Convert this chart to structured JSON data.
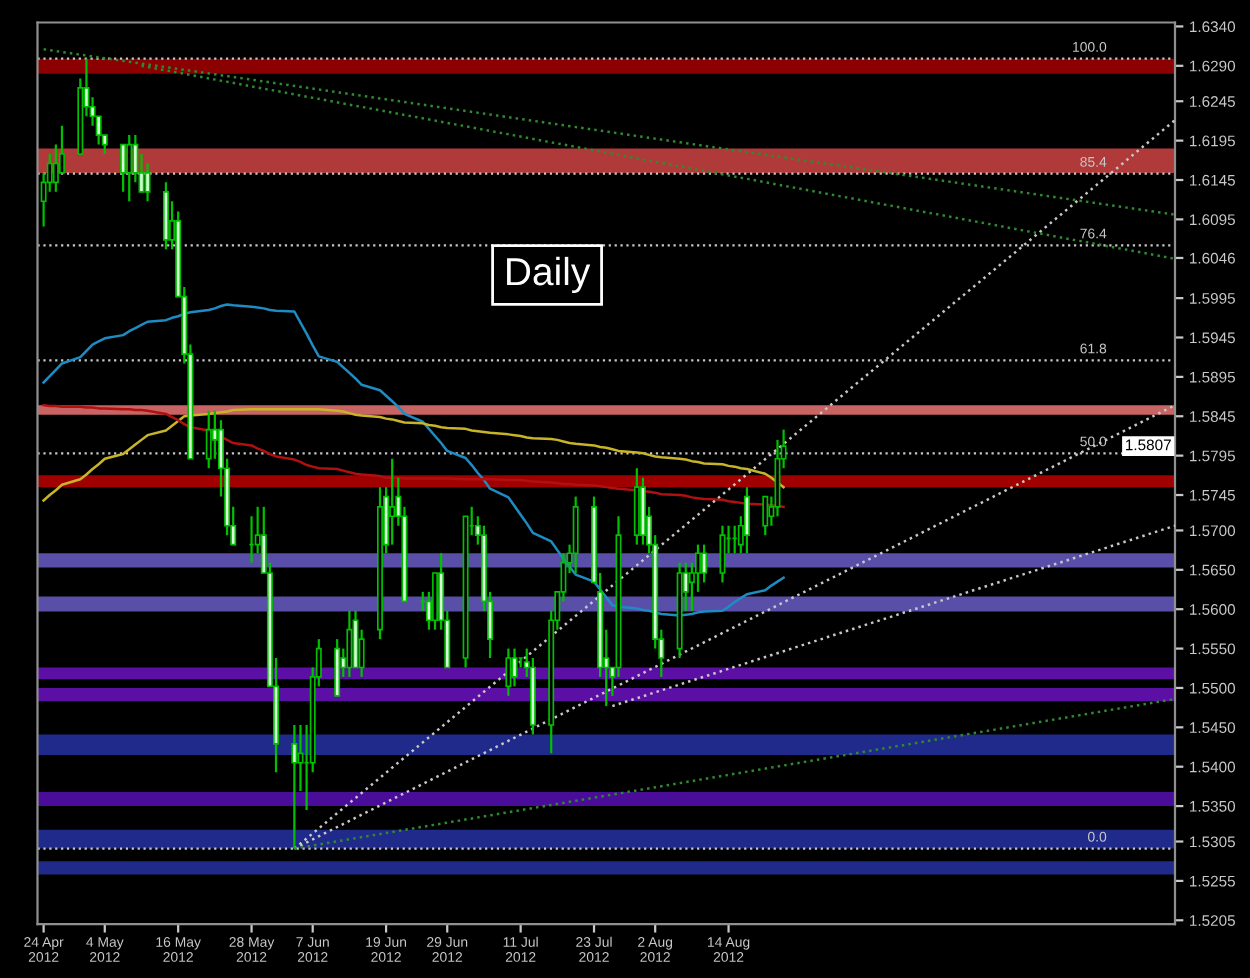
{
  "chart_data": {
    "type": "candlestick",
    "color": "#00c000",
    "x": [
      "2012-04-24",
      "2012-04-25",
      "2012-04-26",
      "2012-04-27",
      "2012-04-30",
      "2012-05-01",
      "2012-05-02",
      "2012-05-03",
      "2012-05-04",
      "2012-05-07",
      "2012-05-08",
      "2012-05-09",
      "2012-05-10",
      "2012-05-11",
      "2012-05-14",
      "2012-05-15",
      "2012-05-16",
      "2012-05-17",
      "2012-05-18",
      "2012-05-21",
      "2012-05-22",
      "2012-05-23",
      "2012-05-24",
      "2012-05-25",
      "2012-05-28",
      "2012-05-29",
      "2012-05-30",
      "2012-05-31",
      "2012-06-01",
      "2012-06-04",
      "2012-06-05",
      "2012-06-06",
      "2012-06-07",
      "2012-06-08",
      "2012-06-11",
      "2012-06-12",
      "2012-06-13",
      "2012-06-14",
      "2012-06-15",
      "2012-06-18",
      "2012-06-19",
      "2012-06-20",
      "2012-06-21",
      "2012-06-22",
      "2012-06-25",
      "2012-06-26",
      "2012-06-27",
      "2012-06-28",
      "2012-06-29",
      "2012-07-02",
      "2012-07-03",
      "2012-07-04",
      "2012-07-05",
      "2012-07-06",
      "2012-07-09",
      "2012-07-10",
      "2012-07-11",
      "2012-07-12",
      "2012-07-13",
      "2012-07-16",
      "2012-07-17",
      "2012-07-18",
      "2012-07-19",
      "2012-07-20",
      "2012-07-23",
      "2012-07-24",
      "2012-07-25",
      "2012-07-26",
      "2012-07-27",
      "2012-07-30",
      "2012-07-31",
      "2012-08-01",
      "2012-08-02",
      "2012-08-03",
      "2012-08-06",
      "2012-08-07",
      "2012-08-08",
      "2012-08-09",
      "2012-08-10",
      "2012-08-13",
      "2012-08-14",
      "2012-08-15",
      "2012-08-16",
      "2012-08-17",
      "2012-08-20",
      "2012-08-21",
      "2012-08-22",
      "2012-08-23"
    ],
    "ohlc": [
      [
        1.6118,
        1.6154,
        1.6086,
        1.6142
      ],
      [
        1.6142,
        1.6178,
        1.613,
        1.6166
      ],
      [
        1.6142,
        1.619,
        1.613,
        1.6166
      ],
      [
        1.6154,
        1.6214,
        1.6154,
        1.6178
      ],
      [
        1.6178,
        1.6274,
        1.6178,
        1.6262
      ],
      [
        1.6262,
        1.6299,
        1.6226,
        1.6238
      ],
      [
        1.6238,
        1.625,
        1.6214,
        1.6226
      ],
      [
        1.6226,
        1.6226,
        1.619,
        1.6202
      ],
      [
        1.6202,
        1.6202,
        1.6178,
        1.619
      ],
      [
        1.619,
        1.619,
        1.613,
        1.6154
      ],
      [
        1.6154,
        1.6202,
        1.6118,
        1.619
      ],
      [
        1.619,
        1.6202,
        1.6142,
        1.6154
      ],
      [
        1.6154,
        1.6178,
        1.613,
        1.613
      ],
      [
        1.6154,
        1.6166,
        1.6118,
        1.613
      ],
      [
        1.613,
        1.6142,
        1.6057,
        1.6069
      ],
      [
        1.6069,
        1.6118,
        1.6057,
        1.6093
      ],
      [
        1.6093,
        1.6105,
        1.5997,
        1.5997
      ],
      [
        1.5997,
        1.6009,
        1.5912,
        1.5924
      ],
      [
        1.5924,
        1.5936,
        1.5791,
        1.5791
      ],
      [
        1.5791,
        1.5852,
        1.5779,
        1.5828
      ],
      [
        1.5828,
        1.5852,
        1.5791,
        1.5815
      ],
      [
        1.5828,
        1.584,
        1.5743,
        1.5779
      ],
      [
        1.5779,
        1.5791,
        1.5694,
        1.5706
      ],
      [
        1.5706,
        1.573,
        1.5682,
        1.5682
      ],
      [
        1.5682,
        1.5718,
        1.5659,
        1.5682
      ],
      [
        1.5682,
        1.573,
        1.5671,
        1.5694
      ],
      [
        1.5694,
        1.573,
        1.5646,
        1.5646
      ],
      [
        1.5646,
        1.5659,
        1.5502,
        1.5502
      ],
      [
        1.5502,
        1.5538,
        1.5393,
        1.5429
      ],
      [
        1.5429,
        1.5453,
        1.5296,
        1.5405
      ],
      [
        1.5405,
        1.5453,
        1.5369,
        1.5417
      ],
      [
        1.5405,
        1.5453,
        1.5345,
        1.5405
      ],
      [
        1.5405,
        1.5526,
        1.5393,
        1.5514
      ],
      [
        1.5514,
        1.5562,
        1.5502,
        1.555
      ],
      [
        1.555,
        1.5562,
        1.549,
        1.549
      ],
      [
        1.5538,
        1.555,
        1.5514,
        1.5526
      ],
      [
        1.5526,
        1.5598,
        1.5514,
        1.5574
      ],
      [
        1.5586,
        1.5598,
        1.5526,
        1.5526
      ],
      [
        1.5526,
        1.5574,
        1.5514,
        1.5562
      ],
      [
        1.5574,
        1.5755,
        1.5562,
        1.573
      ],
      [
        1.5743,
        1.5755,
        1.5671,
        1.5682
      ],
      [
        1.5718,
        1.5791,
        1.5682,
        1.573
      ],
      [
        1.5743,
        1.5767,
        1.5706,
        1.5718
      ],
      [
        1.5718,
        1.573,
        1.561,
        1.561
      ],
      [
        1.561,
        1.5622,
        1.5598,
        1.561
      ],
      [
        1.561,
        1.5622,
        1.5574,
        1.5586
      ],
      [
        1.5586,
        1.5646,
        1.5574,
        1.5646
      ],
      [
        1.5646,
        1.5671,
        1.5574,
        1.5586
      ],
      [
        1.5586,
        1.5598,
        1.5526,
        1.5526
      ],
      [
        1.5538,
        1.5718,
        1.5526,
        1.5718
      ],
      [
        1.5706,
        1.573,
        1.5694,
        1.5706
      ],
      [
        1.5706,
        1.5718,
        1.5682,
        1.5694
      ],
      [
        1.5694,
        1.5706,
        1.5598,
        1.561
      ],
      [
        1.561,
        1.5622,
        1.5538,
        1.5562
      ],
      [
        1.5502,
        1.555,
        1.549,
        1.5538
      ],
      [
        1.5538,
        1.555,
        1.5502,
        1.5514
      ],
      [
        1.5538,
        1.5538,
        1.5526,
        1.5538
      ],
      [
        1.5533,
        1.555,
        1.5514,
        1.5526
      ],
      [
        1.5526,
        1.5538,
        1.5441,
        1.5453
      ],
      [
        1.5453,
        1.5598,
        1.5417,
        1.5586
      ],
      [
        1.5586,
        1.5622,
        1.5574,
        1.5622
      ],
      [
        1.5622,
        1.5671,
        1.561,
        1.5659
      ],
      [
        1.5659,
        1.5682,
        1.5646,
        1.5671
      ],
      [
        1.5671,
        1.5743,
        1.5646,
        1.573
      ],
      [
        1.573,
        1.5743,
        1.5634,
        1.5634
      ],
      [
        1.5622,
        1.5646,
        1.5514,
        1.5526
      ],
      [
        1.5538,
        1.5574,
        1.5477,
        1.5526
      ],
      [
        1.5526,
        1.5526,
        1.549,
        1.5514
      ],
      [
        1.5526,
        1.5718,
        1.5514,
        1.5694
      ],
      [
        1.5694,
        1.5779,
        1.5682,
        1.5755
      ],
      [
        1.5755,
        1.5767,
        1.5682,
        1.5694
      ],
      [
        1.5718,
        1.573,
        1.5671,
        1.5682
      ],
      [
        1.5682,
        1.5694,
        1.555,
        1.5562
      ],
      [
        1.5562,
        1.5574,
        1.5514,
        1.5538
      ],
      [
        1.555,
        1.5659,
        1.5538,
        1.5646
      ],
      [
        1.5646,
        1.5659,
        1.5598,
        1.5622
      ],
      [
        1.5634,
        1.5659,
        1.5598,
        1.5646
      ],
      [
        1.5646,
        1.5682,
        1.5622,
        1.5671
      ],
      [
        1.5671,
        1.5682,
        1.5634,
        1.5646
      ],
      [
        1.5646,
        1.5706,
        1.5634,
        1.5694
      ],
      [
        1.569,
        1.5706,
        1.5671,
        1.569
      ],
      [
        1.569,
        1.5706,
        1.5671,
        1.569
      ],
      [
        1.5682,
        1.5718,
        1.5671,
        1.5706
      ],
      [
        1.5743,
        1.5755,
        1.5671,
        1.5694
      ],
      [
        1.5706,
        1.5743,
        1.5694,
        1.5743
      ],
      [
        1.5718,
        1.5743,
        1.5706,
        1.573
      ],
      [
        1.573,
        1.5815,
        1.5718,
        1.5791
      ],
      [
        1.5791,
        1.5828,
        1.5779,
        1.5807
      ]
    ],
    "series": [
      {
        "type": "line",
        "color": "#1e8bc3",
        "values": [
          1.5888,
          1.5896,
          1.5904,
          1.5912,
          1.592,
          1.5928,
          1.5936,
          1.594,
          1.5944,
          1.5948,
          1.5953,
          1.5957,
          1.5961,
          1.5965,
          1.5967,
          1.597,
          1.5972,
          1.5975,
          1.5977,
          1.598,
          1.5982,
          1.5985,
          1.5987,
          1.5986,
          1.5984,
          1.5983,
          1.5982,
          1.598,
          1.5979,
          1.5978,
          1.5964,
          1.595,
          1.5935,
          1.5921,
          1.5914,
          1.5907,
          1.59,
          1.5893,
          1.5885,
          1.5878,
          1.5871,
          1.5864,
          1.5857,
          1.5848,
          1.5838,
          1.5829,
          1.582,
          1.5811,
          1.5801,
          1.5792,
          1.5783,
          1.5773,
          1.5764,
          1.5753,
          1.5742,
          1.5731,
          1.572,
          1.5709,
          1.5697,
          1.5686,
          1.5675,
          1.5664,
          1.5654,
          1.5644,
          1.5635,
          1.5625,
          1.5615,
          1.5605,
          1.5603,
          1.5601,
          1.5599,
          1.5598,
          1.5596,
          1.5594,
          1.5592,
          1.5593,
          1.5594,
          1.5596,
          1.5597,
          1.5598,
          1.5603,
          1.5609,
          1.5614,
          1.5619,
          1.5624,
          1.563,
          1.5635,
          1.564
        ]
      },
      {
        "type": "line",
        "color": "#c8b428",
        "values": [
          1.5738,
          1.5745,
          1.5751,
          1.5758,
          1.5765,
          1.5771,
          1.5778,
          1.5784,
          1.5791,
          1.5797,
          1.5803,
          1.5809,
          1.5815,
          1.5821,
          1.5827,
          1.5833,
          1.5839,
          1.5845,
          1.5846,
          1.5848,
          1.5849,
          1.585,
          1.5851,
          1.5853,
          1.5854,
          1.5854,
          1.5854,
          1.5854,
          1.5854,
          1.5854,
          1.5854,
          1.5854,
          1.5854,
          1.5854,
          1.5852,
          1.5851,
          1.5849,
          1.5847,
          1.5846,
          1.5844,
          1.5842,
          1.5841,
          1.5839,
          1.5837,
          1.5836,
          1.5834,
          1.5833,
          1.5831,
          1.583,
          1.5829,
          1.5827,
          1.5826,
          1.5825,
          1.5824,
          1.5822,
          1.5821,
          1.582,
          1.5818,
          1.5817,
          1.5816,
          1.5815,
          1.5813,
          1.5811,
          1.581,
          1.5808,
          1.5806,
          1.5805,
          1.5803,
          1.5801,
          1.5799,
          1.5798,
          1.5796,
          1.5794,
          1.5793,
          1.5791,
          1.579,
          1.5788,
          1.5787,
          1.5785,
          1.5784,
          1.5782,
          1.5781,
          1.5779,
          1.5778,
          1.5772,
          1.5767,
          1.5761,
          1.5755
        ]
      },
      {
        "type": "line",
        "color": "#b01010",
        "values": [
          1.5859,
          1.5858,
          1.5858,
          1.5857,
          1.5857,
          1.5856,
          1.5856,
          1.5855,
          1.5855,
          1.5854,
          1.5854,
          1.5853,
          1.5853,
          1.5852,
          1.5848,
          1.5844,
          1.584,
          1.5835,
          1.5831,
          1.5827,
          1.5823,
          1.5819,
          1.5815,
          1.5811,
          1.5808,
          1.5804,
          1.5801,
          1.5797,
          1.5794,
          1.579,
          1.5787,
          1.5783,
          1.5781,
          1.5779,
          1.5778,
          1.5776,
          1.5774,
          1.5772,
          1.5771,
          1.5769,
          1.5767,
          1.5767,
          1.5767,
          1.5766,
          1.5766,
          1.5766,
          1.5766,
          1.5766,
          1.5766,
          1.5765,
          1.5765,
          1.5765,
          1.5765,
          1.5765,
          1.5764,
          1.5764,
          1.5764,
          1.5763,
          1.5762,
          1.5761,
          1.576,
          1.5759,
          1.5759,
          1.5758,
          1.5757,
          1.5756,
          1.5755,
          1.5754,
          1.5753,
          1.5751,
          1.575,
          1.5749,
          1.5748,
          1.5746,
          1.5745,
          1.5744,
          1.5742,
          1.5741,
          1.574,
          1.5739,
          1.5737,
          1.5736,
          1.5735,
          1.5734,
          1.5733,
          1.5732,
          1.5731,
          1.573
        ]
      },
      {
        "type": "line",
        "color": "#c8c8c8",
        "line_style": "dotted",
        "x": [
          "2012-06-04",
          "2012-10-26"
        ],
        "values": [
          1.5296,
          1.6221
        ]
      },
      {
        "type": "line",
        "color": "#c8c8c8",
        "line_style": "dotted",
        "x": [
          "2012-06-04",
          "2012-10-26"
        ],
        "values": [
          1.5296,
          1.5859
        ]
      },
      {
        "type": "line",
        "color": "#c8c8c8",
        "line_style": "dotted",
        "x": [
          "2012-07-26",
          "2012-10-26"
        ],
        "values": [
          1.5477,
          1.5706
        ]
      },
      {
        "type": "line",
        "color": "#2e8b2e",
        "line_style": "dotted",
        "x": [
          "2012-04-24",
          "2012-10-26"
        ],
        "values": [
          1.6311,
          1.6101
        ]
      },
      {
        "type": "line",
        "color": "#2e8b2e",
        "line_style": "dotted",
        "x": [
          "2012-05-10",
          "2012-10-26"
        ],
        "values": [
          1.629,
          1.6045
        ]
      },
      {
        "type": "line",
        "color": "#2e8b2e",
        "line_style": "dotted",
        "x": [
          "2012-06-04",
          "2012-10-26"
        ],
        "values": [
          1.5296,
          1.5486
        ]
      }
    ],
    "bands": [
      {
        "axis": "y",
        "from": 1.628,
        "to": 1.6299,
        "color": "#8b0000"
      },
      {
        "axis": "y",
        "from": 1.6154,
        "to": 1.6185,
        "color": "#b03a3a"
      },
      {
        "axis": "y",
        "from": 1.5847,
        "to": 1.5859,
        "color": "#c86464"
      },
      {
        "axis": "y",
        "from": 1.5755,
        "to": 1.577,
        "color": "#a00000"
      },
      {
        "axis": "y",
        "from": 1.5653,
        "to": 1.5671,
        "color": "#5a4fa8"
      },
      {
        "axis": "y",
        "from": 1.5597,
        "to": 1.5616,
        "color": "#5a4fa8"
      },
      {
        "axis": "y",
        "from": 1.5511,
        "to": 1.5526,
        "color": "#5b0fa5"
      },
      {
        "axis": "y",
        "from": 1.5483,
        "to": 1.55,
        "color": "#5b0fa5"
      },
      {
        "axis": "y",
        "from": 1.5415,
        "to": 1.5441,
        "color": "#1f2a8a"
      },
      {
        "axis": "y",
        "from": 1.535,
        "to": 1.5368,
        "color": "#4a0d9a"
      },
      {
        "axis": "y",
        "from": 1.5296,
        "to": 1.532,
        "color": "#1f2a8a"
      },
      {
        "axis": "y",
        "from": 1.5263,
        "to": 1.528,
        "color": "#1f2a8a"
      }
    ],
    "ref_lines": [
      {
        "axis": "y",
        "value": 1.6299,
        "color": "#c8c8c8",
        "line_style": "dotted"
      },
      {
        "axis": "y",
        "value": 1.6153,
        "color": "#c8c8c8",
        "line_style": "dotted"
      },
      {
        "axis": "y",
        "value": 1.6062,
        "color": "#c8c8c8",
        "line_style": "dotted"
      },
      {
        "axis": "y",
        "value": 1.5916,
        "color": "#c8c8c8",
        "line_style": "dotted"
      },
      {
        "axis": "y",
        "value": 1.5798,
        "color": "#c8c8c8",
        "line_style": "dotted"
      },
      {
        "axis": "y",
        "value": 1.5296,
        "color": "#c8c8c8",
        "line_style": "dotted"
      }
    ],
    "annotations": [
      "Daily",
      {
        "text": "1.5807",
        "y": 1.5807
      },
      {
        "text": "100.0",
        "y": 1.6299
      },
      {
        "text": "85.4",
        "y": 1.6153
      },
      {
        "text": "76.4",
        "y": 1.6062
      },
      {
        "text": "61.8",
        "y": 1.5916
      },
      {
        "text": "50.0",
        "y": 1.5798
      },
      {
        "text": "0.0",
        "y": 1.5296
      }
    ],
    "xlim": [
      "2012-04-23",
      "2012-10-26"
    ],
    "xticks": [
      {
        "value": "2012-04-24",
        "label": "24 Apr 2012"
      },
      {
        "value": "2012-05-04",
        "label": "4 May 2012"
      },
      {
        "value": "2012-05-16",
        "label": "16 May 2012"
      },
      {
        "value": "2012-05-28",
        "label": "28 May 2012"
      },
      {
        "value": "2012-06-07",
        "label": "7 Jun 2012"
      },
      {
        "value": "2012-06-19",
        "label": "19 Jun 2012"
      },
      {
        "value": "2012-06-29",
        "label": "29 Jun 2012"
      },
      {
        "value": "2012-07-11",
        "label": "11 Jul 2012"
      },
      {
        "value": "2012-07-23",
        "label": "23 Jul 2012"
      },
      {
        "value": "2012-08-02",
        "label": "2 Aug 2012"
      },
      {
        "value": "2012-08-14",
        "label": "14 Aug 2012"
      }
    ],
    "ylim": [
      1.52,
      1.6345
    ],
    "yticks": [
      {
        "value": 1.634,
        "label": "1.6340"
      },
      {
        "value": 1.629,
        "label": "1.6290"
      },
      1.6245,
      1.6195,
      1.6145,
      1.6095,
      1.6046,
      1.5995,
      1.5945,
      1.5895,
      1.5845,
      1.5795,
      1.5745,
      {
        "value": 1.57,
        "label": "1.5700"
      },
      {
        "value": 1.565,
        "label": "1.5650"
      },
      {
        "value": 1.56,
        "label": "1.5600"
      },
      {
        "value": 1.555,
        "label": "1.5550"
      },
      {
        "value": 1.55,
        "label": "1.5500"
      },
      {
        "value": 1.545,
        "label": "1.5450"
      },
      {
        "value": 1.54,
        "label": "1.5400"
      },
      {
        "value": 1.535,
        "label": "1.5350"
      },
      1.5305,
      1.5255,
      1.5205
    ]
  }
}
